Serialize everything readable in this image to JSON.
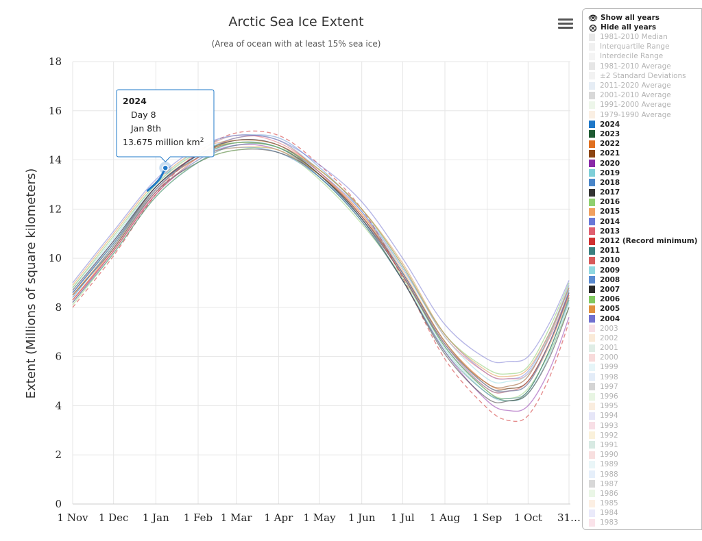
{
  "chart_data": {
    "type": "line",
    "title": "Arctic Sea Ice Extent",
    "subtitle": "(Area of ocean with at least 15% sea ice)",
    "ylabel": "Extent (Millions of square kilometers)",
    "xlabel": "",
    "ylim": [
      0,
      18
    ],
    "yticks": [
      0,
      2,
      4,
      6,
      8,
      10,
      12,
      14,
      16,
      18
    ],
    "x_units": "day since 1 Nov",
    "xlim": [
      0,
      365
    ],
    "xticks": [
      {
        "day": 0,
        "label": "1 Nov"
      },
      {
        "day": 30,
        "label": "1 Dec"
      },
      {
        "day": 61,
        "label": "1 Jan"
      },
      {
        "day": 92,
        "label": "1 Feb"
      },
      {
        "day": 120,
        "label": "1 Mar"
      },
      {
        "day": 151,
        "label": "1 Apr"
      },
      {
        "day": 181,
        "label": "1 May"
      },
      {
        "day": 212,
        "label": "1 Jun"
      },
      {
        "day": 242,
        "label": "1 Jul"
      },
      {
        "day": 273,
        "label": "1 Aug"
      },
      {
        "day": 304,
        "label": "1 Sep"
      },
      {
        "day": 334,
        "label": "1 Oct"
      },
      {
        "day": 364,
        "label": "31…"
      }
    ],
    "grid": true,
    "legend_position": "right",
    "series_2024": {
      "name": "2024",
      "color": "#1f78c8",
      "x": [
        55,
        58,
        61,
        64,
        66,
        68
      ],
      "y": [
        12.75,
        12.9,
        13.05,
        13.25,
        13.45,
        13.675
      ]
    },
    "series": [
      {
        "name": "2023",
        "color": "#1e5a32",
        "x": [
          0,
          30,
          61,
          92,
          120,
          151,
          181,
          212,
          242,
          273,
          304,
          320,
          334,
          350,
          364
        ],
        "y": [
          8.6,
          10.6,
          12.9,
          14.1,
          14.7,
          14.5,
          13.4,
          11.6,
          9.3,
          6.4,
          4.6,
          4.2,
          4.6,
          6.3,
          8.4
        ]
      },
      {
        "name": "2022",
        "color": "#e07020",
        "x": [
          0,
          30,
          61,
          92,
          120,
          151,
          181,
          212,
          242,
          273,
          304,
          320,
          334,
          350,
          364
        ],
        "y": [
          8.3,
          10.4,
          12.8,
          14.1,
          14.8,
          14.6,
          13.5,
          11.8,
          9.4,
          6.6,
          4.9,
          4.7,
          5.0,
          6.6,
          8.6
        ]
      },
      {
        "name": "2021",
        "color": "#8b4513",
        "x": [
          0,
          30,
          61,
          92,
          120,
          151,
          181,
          212,
          242,
          273,
          304,
          320,
          334,
          350,
          364
        ],
        "y": [
          8.5,
          10.5,
          12.9,
          14.2,
          14.7,
          14.5,
          13.4,
          11.7,
          9.3,
          6.5,
          4.9,
          4.8,
          5.2,
          6.9,
          8.8
        ]
      },
      {
        "name": "2020",
        "color": "#8a2aa8",
        "x": [
          0,
          30,
          61,
          92,
          120,
          151,
          181,
          212,
          242,
          273,
          304,
          320,
          334,
          350,
          364
        ],
        "y": [
          8.2,
          10.3,
          12.6,
          14.0,
          14.6,
          14.4,
          13.3,
          11.5,
          9.1,
          6.2,
          4.2,
          3.8,
          4.0,
          5.5,
          7.6
        ]
      },
      {
        "name": "2019",
        "color": "#7fcfd8",
        "x": [
          0,
          30,
          61,
          92,
          120,
          151,
          181,
          212,
          242,
          273,
          304,
          320,
          334,
          350,
          364
        ],
        "y": [
          8.4,
          10.5,
          12.7,
          14.0,
          14.7,
          14.5,
          13.3,
          11.5,
          9.1,
          6.3,
          4.5,
          4.2,
          4.5,
          6.1,
          8.2
        ]
      },
      {
        "name": "2018",
        "color": "#4a86c8",
        "x": [
          0,
          30,
          61,
          92,
          120,
          151,
          181,
          212,
          242,
          273,
          304,
          320,
          334,
          350,
          364
        ],
        "y": [
          8.6,
          10.6,
          12.8,
          14.1,
          14.5,
          14.3,
          13.3,
          11.6,
          9.3,
          6.4,
          4.7,
          4.6,
          4.9,
          6.6,
          8.7
        ]
      },
      {
        "name": "2017",
        "color": "#333333",
        "x": [
          0,
          30,
          61,
          92,
          120,
          151,
          181,
          212,
          242,
          273,
          304,
          320,
          334,
          350,
          364
        ],
        "y": [
          8.5,
          10.4,
          12.7,
          13.9,
          14.4,
          14.3,
          13.4,
          11.7,
          9.4,
          6.6,
          4.8,
          4.7,
          5.0,
          6.6,
          8.6
        ]
      },
      {
        "name": "2016",
        "color": "#8fd070",
        "x": [
          0,
          30,
          61,
          92,
          120,
          151,
          181,
          212,
          242,
          273,
          304,
          320,
          334,
          350,
          364
        ],
        "y": [
          8.1,
          10.2,
          12.5,
          13.9,
          14.4,
          14.4,
          13.2,
          11.4,
          9.2,
          6.4,
          4.6,
          4.3,
          4.7,
          6.2,
          8.0
        ]
      },
      {
        "name": "2015",
        "color": "#f0a060",
        "x": [
          0,
          30,
          61,
          92,
          120,
          151,
          181,
          212,
          242,
          273,
          304,
          320,
          334,
          350,
          364
        ],
        "y": [
          8.5,
          10.5,
          12.8,
          14.1,
          14.5,
          14.4,
          13.4,
          11.8,
          9.5,
          6.6,
          4.8,
          4.6,
          4.9,
          6.5,
          8.5
        ]
      },
      {
        "name": "2014",
        "color": "#6878d8",
        "x": [
          0,
          30,
          61,
          92,
          120,
          151,
          181,
          212,
          242,
          273,
          304,
          320,
          334,
          350,
          364
        ],
        "y": [
          8.6,
          10.7,
          12.9,
          14.2,
          14.8,
          14.6,
          13.5,
          11.9,
          9.6,
          6.9,
          5.3,
          5.1,
          5.4,
          7.0,
          8.9
        ]
      },
      {
        "name": "2013",
        "color": "#e06070",
        "x": [
          0,
          30,
          61,
          92,
          120,
          151,
          181,
          212,
          242,
          273,
          304,
          320,
          334,
          350,
          364
        ],
        "y": [
          8.3,
          10.3,
          12.7,
          14.3,
          15.0,
          14.7,
          13.6,
          12.0,
          9.7,
          6.8,
          5.3,
          5.1,
          5.3,
          6.8,
          8.6
        ]
      },
      {
        "name": "2012 (Record minimum)",
        "color": "#d03030",
        "dashed": true,
        "x": [
          0,
          30,
          61,
          92,
          120,
          151,
          181,
          212,
          242,
          273,
          304,
          320,
          334,
          350,
          364
        ],
        "y": [
          8.0,
          10.1,
          12.6,
          14.3,
          15.1,
          15.0,
          13.8,
          12.0,
          9.2,
          5.9,
          3.9,
          3.4,
          3.6,
          5.2,
          7.4
        ]
      },
      {
        "name": "2011",
        "color": "#3a8080",
        "x": [
          0,
          30,
          61,
          92,
          120,
          151,
          181,
          212,
          242,
          273,
          304,
          320,
          334,
          350,
          364
        ],
        "y": [
          8.2,
          10.2,
          12.5,
          13.9,
          14.6,
          14.5,
          13.3,
          11.5,
          9.1,
          6.2,
          4.5,
          4.3,
          4.6,
          6.3,
          8.3
        ]
      },
      {
        "name": "2010",
        "color": "#d85a5a",
        "x": [
          0,
          30,
          61,
          92,
          120,
          151,
          181,
          212,
          242,
          273,
          304,
          320,
          334,
          350,
          364
        ],
        "y": [
          8.3,
          10.3,
          12.6,
          14.1,
          14.9,
          14.8,
          13.5,
          11.7,
          9.3,
          6.5,
          4.7,
          4.6,
          5.0,
          6.6,
          8.5
        ]
      },
      {
        "name": "2009",
        "color": "#90d8e0",
        "x": [
          0,
          30,
          61,
          92,
          120,
          151,
          181,
          212,
          242,
          273,
          304,
          320,
          334,
          350,
          364
        ],
        "y": [
          8.8,
          10.8,
          13.0,
          14.4,
          15.0,
          14.8,
          13.6,
          12.0,
          9.6,
          6.8,
          5.1,
          5.0,
          5.3,
          6.9,
          8.8
        ]
      },
      {
        "name": "2008",
        "color": "#5a8ad0",
        "x": [
          0,
          30,
          61,
          92,
          120,
          151,
          181,
          212,
          242,
          273,
          304,
          320,
          334,
          350,
          364
        ],
        "y": [
          8.4,
          10.5,
          12.8,
          14.2,
          14.9,
          14.9,
          13.7,
          11.9,
          9.4,
          6.5,
          4.8,
          4.6,
          4.9,
          6.6,
          8.6
        ]
      },
      {
        "name": "2007",
        "color": "#2a2a2a",
        "x": [
          0,
          30,
          61,
          92,
          120,
          151,
          181,
          212,
          242,
          273,
          304,
          320,
          334,
          350,
          364
        ],
        "y": [
          8.7,
          10.7,
          12.9,
          14.2,
          14.8,
          14.6,
          13.4,
          11.6,
          9.1,
          6.1,
          4.3,
          4.2,
          4.5,
          6.0,
          8.0
        ]
      },
      {
        "name": "2006",
        "color": "#80c860",
        "x": [
          0,
          30,
          61,
          92,
          120,
          151,
          181,
          212,
          242,
          273,
          304,
          320,
          334,
          350,
          364
        ],
        "y": [
          8.8,
          10.9,
          13.0,
          14.3,
          14.7,
          14.5,
          13.6,
          12.0,
          9.7,
          6.9,
          5.5,
          5.3,
          5.6,
          7.2,
          9.0
        ]
      },
      {
        "name": "2005",
        "color": "#e09040",
        "x": [
          0,
          30,
          61,
          92,
          120,
          151,
          181,
          212,
          242,
          273,
          304,
          320,
          334,
          350,
          364
        ],
        "y": [
          8.9,
          11.0,
          13.1,
          14.4,
          14.8,
          14.6,
          13.6,
          12.0,
          9.8,
          6.9,
          5.4,
          5.2,
          5.5,
          7.0,
          8.8
        ]
      },
      {
        "name": "2004",
        "color": "#7070d0",
        "x": [
          0,
          30,
          61,
          92,
          120,
          151,
          181,
          212,
          242,
          273,
          304,
          320,
          334,
          350,
          364
        ],
        "y": [
          9.0,
          11.1,
          13.2,
          14.5,
          15.0,
          14.8,
          13.8,
          12.3,
          10.0,
          7.3,
          5.9,
          5.8,
          6.0,
          7.4,
          9.1
        ]
      }
    ],
    "legend": [
      {
        "label": "1981-2010 Median",
        "color": "#cccccc",
        "on": false
      },
      {
        "label": "Interquartile Range",
        "color": "#dddddd",
        "on": false
      },
      {
        "label": "Interdecile Range",
        "color": "#e6e6e6",
        "on": false
      },
      {
        "label": "1981-2010 Average",
        "color": "#c8c8c8",
        "on": false
      },
      {
        "label": "±2 Standard Deviations",
        "color": "#e2e2e2",
        "on": false
      },
      {
        "label": "2011-2020 Average",
        "color": "#c8d8e8",
        "on": false
      },
      {
        "label": "2001-2010 Average",
        "color": "#a8a8a8",
        "on": false
      },
      {
        "label": "1991-2000 Average",
        "color": "#d8ecd0",
        "on": false
      },
      {
        "label": "1979-1990 Average",
        "color": "#f4dcc0",
        "on": false
      },
      {
        "label": "2024",
        "color": "#1f78c8",
        "on": true
      },
      {
        "label": "2023",
        "color": "#1e5a32",
        "on": true
      },
      {
        "label": "2022",
        "color": "#e07020",
        "on": true
      },
      {
        "label": "2021",
        "color": "#8b4513",
        "on": true
      },
      {
        "label": "2020",
        "color": "#8a2aa8",
        "on": true
      },
      {
        "label": "2019",
        "color": "#7fcfd8",
        "on": true
      },
      {
        "label": "2018",
        "color": "#4a86c8",
        "on": true
      },
      {
        "label": "2017",
        "color": "#333333",
        "on": true
      },
      {
        "label": "2016",
        "color": "#8fd070",
        "on": true
      },
      {
        "label": "2015",
        "color": "#f0a060",
        "on": true
      },
      {
        "label": "2014",
        "color": "#6878d8",
        "on": true
      },
      {
        "label": "2013",
        "color": "#e06070",
        "on": true
      },
      {
        "label": "2012 (Record minimum)",
        "color": "#d03030",
        "on": true
      },
      {
        "label": "2011",
        "color": "#3a8080",
        "on": true
      },
      {
        "label": "2010",
        "color": "#d85a5a",
        "on": true
      },
      {
        "label": "2009",
        "color": "#90d8e0",
        "on": true
      },
      {
        "label": "2008",
        "color": "#5a8ad0",
        "on": true
      },
      {
        "label": "2007",
        "color": "#2a2a2a",
        "on": true
      },
      {
        "label": "2006",
        "color": "#80c860",
        "on": true
      },
      {
        "label": "2005",
        "color": "#e09040",
        "on": true
      },
      {
        "label": "2004",
        "color": "#7070d0",
        "on": true
      },
      {
        "label": "2003",
        "color": "#f0b8c8",
        "on": false
      },
      {
        "label": "2002",
        "color": "#f4d0a8",
        "on": false
      },
      {
        "label": "2001",
        "color": "#b8d8c8",
        "on": false
      },
      {
        "label": "2000",
        "color": "#f0b0b0",
        "on": false
      },
      {
        "label": "1999",
        "color": "#c8e8f0",
        "on": false
      },
      {
        "label": "1998",
        "color": "#c0d4f0",
        "on": false
      },
      {
        "label": "1997",
        "color": "#a0a0a0",
        "on": false
      },
      {
        "label": "1996",
        "color": "#cce8c0",
        "on": false
      },
      {
        "label": "1995",
        "color": "#f4d8b8",
        "on": false
      },
      {
        "label": "1994",
        "color": "#c8c8f0",
        "on": false
      },
      {
        "label": "1993",
        "color": "#f0b8c8",
        "on": false
      },
      {
        "label": "1992",
        "color": "#f4e0b0",
        "on": false
      },
      {
        "label": "1991",
        "color": "#a8d0c0",
        "on": false
      },
      {
        "label": "1990",
        "color": "#f0b8b8",
        "on": false
      },
      {
        "label": "1989",
        "color": "#d0ecf0",
        "on": false
      },
      {
        "label": "1988",
        "color": "#c8dcf4",
        "on": false
      },
      {
        "label": "1987",
        "color": "#a8a8a8",
        "on": false
      },
      {
        "label": "1986",
        "color": "#d0ecc8",
        "on": false
      },
      {
        "label": "1985",
        "color": "#f8dcc0",
        "on": false
      },
      {
        "label": "1984",
        "color": "#d0d0f4",
        "on": false
      },
      {
        "label": "1983",
        "color": "#f4c0d0",
        "on": false
      }
    ]
  },
  "legend_actions": {
    "show_all": "Show all years",
    "hide_all": "Hide all years"
  },
  "tooltip": {
    "year": "2024",
    "day": "Day 8",
    "date": "Jan 8th",
    "value": "13.675 million km",
    "unit_sup": "2",
    "point_x": 68,
    "point_y": 13.675
  },
  "icons": {
    "menu": "hamburger-menu-icon",
    "show": "eye-icon",
    "hide": "eye-slash-icon"
  }
}
